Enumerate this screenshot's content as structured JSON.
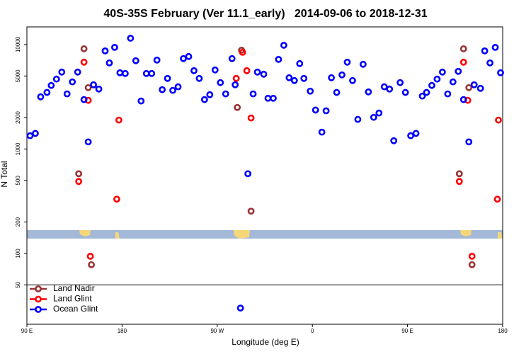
{
  "chart_data": {
    "type": "scatter",
    "title": "40S-35S February (Ver 11.1_early)   2014-09-06 to 2018-12-31",
    "xlabel": "Longitude (deg E)",
    "ylabel": "N Total",
    "xlim": [
      90,
      540
    ],
    "xticks": [
      {
        "value": 90,
        "label": "90 E"
      },
      180,
      {
        "value": 270,
        "label": "90 W"
      },
      {
        "value": 360,
        "label": "0"
      },
      {
        "value": 450,
        "label": "90 E"
      },
      {
        "value": 540,
        "label": "180"
      }
    ],
    "ylim": [
      21,
      14750
    ],
    "yscale": "log",
    "yticks": [
      50,
      100,
      200,
      500,
      1000,
      2000,
      5000,
      10000
    ],
    "legend": "lower left",
    "series": [
      {
        "name": "Land Nadir",
        "color": "#993333",
        "x": [
          144,
          139,
          148,
          151,
          289,
          293,
          302,
          503,
          499,
          508,
          511
        ],
        "values": [
          9100,
          580,
          3870,
          78,
          2500,
          8830,
          254,
          9100,
          580,
          3870,
          78
        ]
      },
      {
        "name": "Land Glint",
        "color": "#ff0000",
        "x": [
          144,
          139,
          148,
          150,
          177,
          175,
          288,
          294,
          298,
          302,
          503,
          499,
          507,
          511,
          536,
          535
        ],
        "values": [
          6780,
          489,
          2924,
          94,
          1892,
          331,
          4740,
          8430,
          5620,
          1982,
          6780,
          489,
          2924,
          94,
          1892,
          331
        ]
      },
      {
        "name": "Ocean Glint",
        "color": "#0000ff",
        "x": [
          93,
          98,
          103,
          109,
          113,
          118,
          123,
          128,
          133,
          138,
          144,
          148,
          153,
          158,
          164,
          168,
          173,
          178,
          183,
          188,
          193,
          198,
          203,
          208,
          213,
          218,
          223,
          228,
          233,
          238,
          243,
          248,
          253,
          258,
          263,
          268,
          273,
          278,
          284,
          287,
          292,
          299,
          304,
          308,
          314,
          318,
          323,
          328,
          333,
          338,
          343,
          348,
          352,
          358,
          363,
          369,
          373,
          378,
          383,
          388,
          393,
          398,
          403,
          408,
          413,
          418,
          423,
          428,
          433,
          437,
          443,
          448,
          453,
          458,
          464,
          468,
          473,
          478,
          483,
          488,
          493,
          498,
          503,
          508,
          513,
          519,
          523,
          528,
          533,
          538
        ],
        "values": [
          1340,
          1410,
          3160,
          3480,
          4060,
          4670,
          5450,
          3370,
          4390,
          5450,
          2970,
          1170,
          4120,
          3750,
          8690,
          6670,
          9400,
          5370,
          5280,
          11500,
          7000,
          2880,
          5280,
          5280,
          7100,
          3700,
          4740,
          3640,
          3940,
          7330,
          7680,
          5620,
          4740,
          2970,
          3310,
          5710,
          4320,
          3370,
          7330,
          4120,
          30,
          580,
          3370,
          5450,
          5200,
          3060,
          3060,
          7210,
          9840,
          4810,
          4520,
          6570,
          4740,
          3580,
          2360,
          1450,
          2320,
          4810,
          3480,
          5120,
          6780,
          4520,
          1920,
          6470,
          3520,
          2010,
          2210,
          3940,
          3750,
          1200,
          4320,
          3480,
          1340,
          1410,
          3210,
          3480,
          4060,
          4670,
          5450,
          3370,
          4390,
          5540,
          2970,
          1170,
          4120,
          3810,
          8690,
          6670,
          9400,
          5370
        ]
      }
    ]
  }
}
